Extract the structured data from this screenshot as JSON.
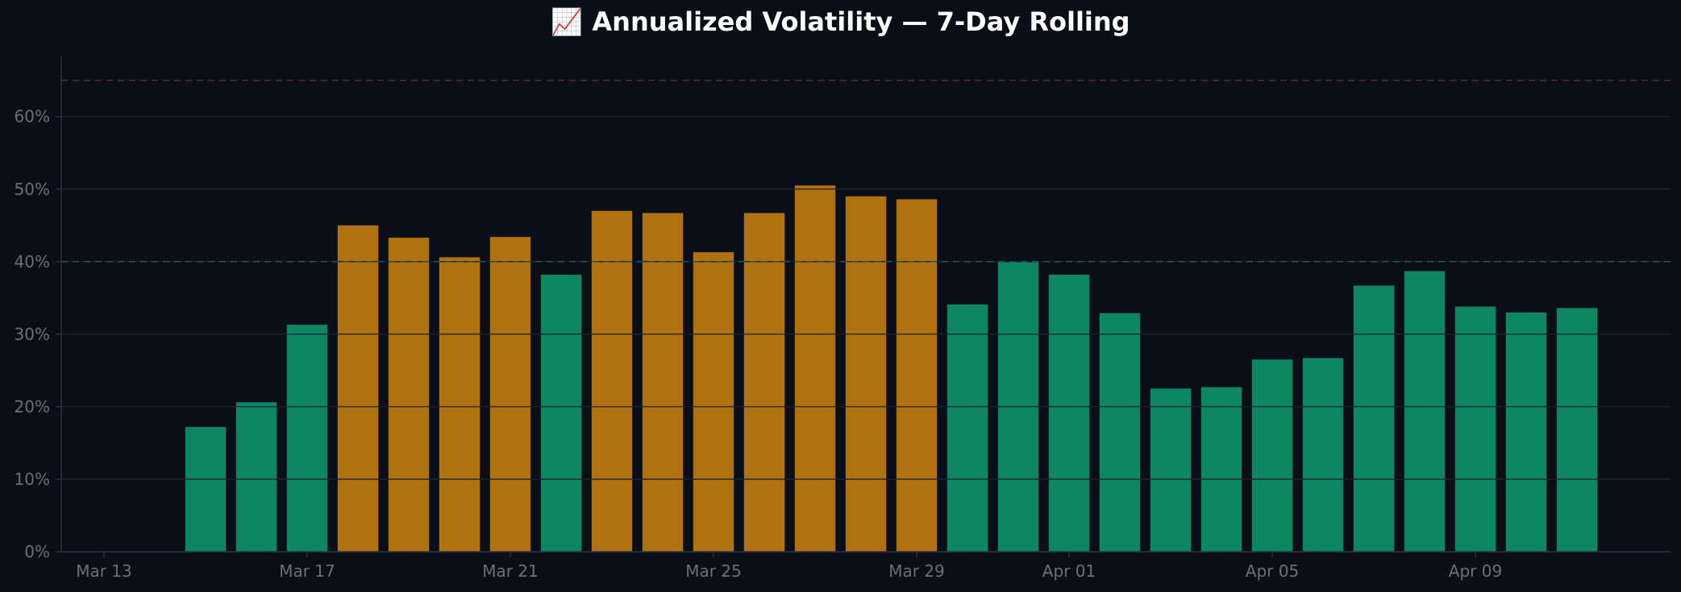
{
  "chart_data": {
    "type": "bar",
    "title": "📈 Annualized Volatility — 7-Day Rolling",
    "xlabel": "",
    "ylabel": "",
    "ylim": [
      0,
      68.3
    ],
    "yticks": [
      "0%",
      "10%",
      "20%",
      "30%",
      "40%",
      "50%",
      "60%"
    ],
    "ytick_values": [
      0,
      10,
      20,
      30,
      40,
      50,
      60
    ],
    "xticks": [
      "Mar 13",
      "Mar 17",
      "Mar 21",
      "Mar 25",
      "Mar 29",
      "Apr 01",
      "Apr 05",
      "Apr 09"
    ],
    "xtick_day_index": [
      0,
      4,
      8,
      12,
      16,
      19,
      23,
      27
    ],
    "day_range": [
      "Mar 13",
      "Apr 12"
    ],
    "grid": true,
    "categories": [
      "Mar 15",
      "Mar 16",
      "Mar 17",
      "Mar 18",
      "Mar 19",
      "Mar 20",
      "Mar 21",
      "Mar 22",
      "Mar 23",
      "Mar 24",
      "Mar 25",
      "Mar 26",
      "Mar 27",
      "Mar 28",
      "Mar 29",
      "Mar 30",
      "Mar 31",
      "Apr 01",
      "Apr 02",
      "Apr 03",
      "Apr 04",
      "Apr 05",
      "Apr 06",
      "Apr 07",
      "Apr 08",
      "Apr 09",
      "Apr 10",
      "Apr 11"
    ],
    "values": [
      17.2,
      20.6,
      31.3,
      45.0,
      43.3,
      40.6,
      43.4,
      38.2,
      47.0,
      46.7,
      41.3,
      46.7,
      50.5,
      49.0,
      48.6,
      34.1,
      39.9,
      38.2,
      32.9,
      22.5,
      22.7,
      26.5,
      26.7,
      36.7,
      38.7,
      33.8,
      33.0,
      33.6
    ],
    "reference_lines": [
      {
        "value": 65,
        "color": "#5a2a30",
        "style": "dashed"
      },
      {
        "value": 40,
        "color": "#1f5a50",
        "style": "dashed"
      }
    ],
    "colors": {
      "below_threshold": "#0e8662",
      "above_threshold": "#b0720e",
      "background": "#0a0e17",
      "grid": "#1c2333",
      "axis": "#2a3448"
    },
    "threshold": 40
  }
}
